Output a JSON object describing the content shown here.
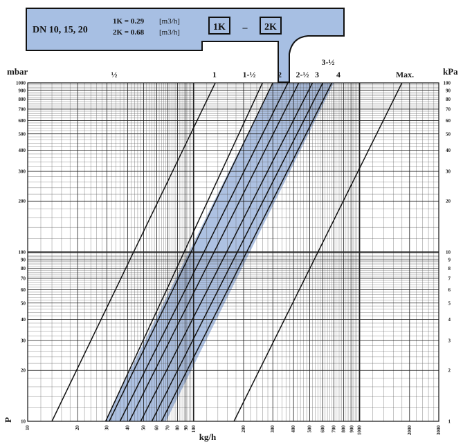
{
  "header": {
    "dn": "DN 10, 15, 20",
    "k1_text": "1K = 0.29",
    "k1_unit": "[m3/h]",
    "k2_text": "2K = 0.68",
    "k2_unit": "[m3/h]",
    "box1": "1K",
    "dash": "–",
    "box2": "2K"
  },
  "chart_data": {
    "type": "line",
    "xlabel": "kg/h",
    "ylabel_left": "mbar",
    "ylabel_right": "kPa",
    "axis_letter": "P",
    "x_scale": "log",
    "y_scale": "log",
    "xlim": [
      10,
      3000
    ],
    "ylim": [
      10,
      1000
    ],
    "ylim_kpa": [
      1,
      100
    ],
    "grid": true,
    "x_ticks": [
      10,
      20,
      30,
      40,
      50,
      60,
      70,
      80,
      90,
      100,
      200,
      300,
      400,
      500,
      600,
      700,
      800,
      900,
      1000,
      2000,
      3000
    ],
    "x_tick_labels": [
      "10",
      "20",
      "30",
      "40",
      "50",
      "60",
      "70",
      "80",
      "90",
      "100",
      "200",
      "300",
      "400",
      "500",
      "600",
      "700",
      "800",
      "900",
      "1000",
      "2000",
      "3000"
    ],
    "y_ticks": [
      10,
      20,
      30,
      40,
      50,
      60,
      70,
      80,
      90,
      100,
      200,
      300,
      400,
      500,
      600,
      700,
      800,
      900,
      1000
    ],
    "y_tick_labels_left": [
      "10",
      "20",
      "30",
      "40",
      "50",
      "60",
      "70",
      "80",
      "90",
      "100",
      "200",
      "300",
      "400",
      "500",
      "600",
      "700",
      "800",
      "900",
      "1000"
    ],
    "y_tick_labels_right": [
      "1",
      "2",
      "3",
      "4",
      "5",
      "6",
      "7",
      "8",
      "9",
      "10",
      "20",
      "30",
      "40",
      "50",
      "60",
      "70",
      "80",
      "90",
      "100"
    ],
    "shaded_band": {
      "lower_at_1000": 300,
      "upper_at_1000": 700
    },
    "series": [
      {
        "name": "½",
        "at_p10": 14,
        "at_p1000": 135
      },
      {
        "name": "1",
        "at_p10": 29.5,
        "at_p1000": 260
      },
      {
        "name": "1-½",
        "at_p10": 31,
        "at_p1000": 300
      },
      {
        "name": "2",
        "at_p10": 36,
        "at_p1000": 370
      },
      {
        "name": "2-½",
        "at_p10": 41,
        "at_p1000": 430
      },
      {
        "name": "3",
        "at_p10": 48,
        "at_p1000": 520
      },
      {
        "name": "3-½",
        "at_p10": 56,
        "at_p1000": 600
      },
      {
        "name": "4",
        "at_p10": 64,
        "at_p1000": 680
      },
      {
        "name": "Max.",
        "at_p10": 175,
        "at_p1000": 1800
      }
    ]
  }
}
